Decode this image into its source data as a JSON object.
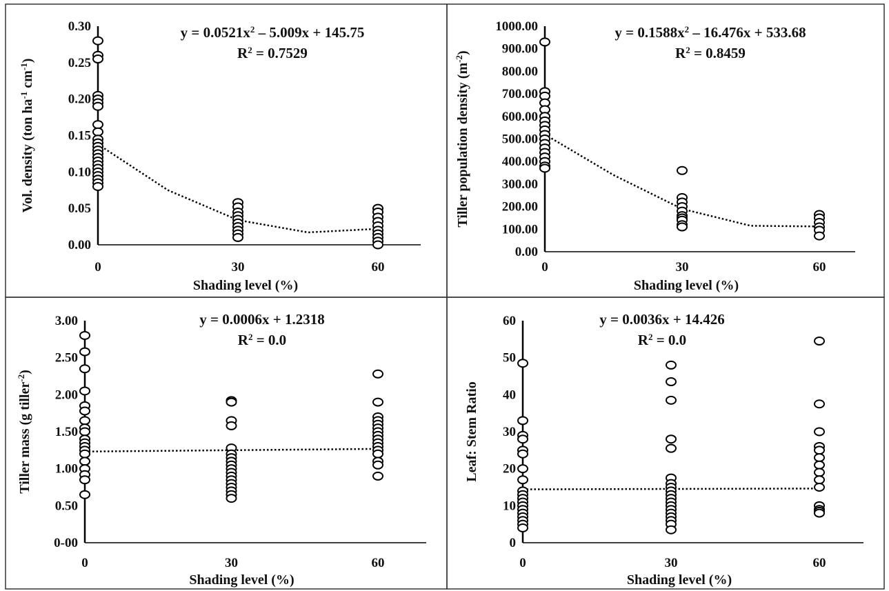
{
  "chart_data": [
    {
      "type": "scatter",
      "xlabel": "Shading level (%)",
      "ylabel": "Vol. density (ton ha-1 cm-1)",
      "ylabel_parts": [
        {
          "t": "Vol. density (ton ha"
        },
        {
          "t": "-1",
          "sup": true
        },
        {
          "t": " cm"
        },
        {
          "t": "-1",
          "sup": true
        },
        {
          "t": ")"
        }
      ],
      "x_ticks": [
        "0",
        "30",
        "60"
      ],
      "x_tick_values": [
        0,
        30,
        60
      ],
      "y_ticks": [
        "0.00",
        "0.05",
        "0.10",
        "0.15",
        "0.20",
        "0.25",
        "0.30"
      ],
      "ylim": [
        0,
        0.3
      ],
      "equation_parts": [
        {
          "t": "y = 0.0521x"
        },
        {
          "t": "2",
          "sup": true
        },
        {
          "t": " – 5.009x + 145.75"
        }
      ],
      "r2_parts": [
        {
          "t": "R"
        },
        {
          "t": "2",
          "sup": true
        },
        {
          "t": " = 0.7529"
        }
      ],
      "trendline": {
        "kind": "poly2",
        "points": [
          [
            0,
            0.138
          ],
          [
            15,
            0.075
          ],
          [
            30,
            0.034
          ],
          [
            45,
            0.017
          ],
          [
            60,
            0.022
          ]
        ]
      },
      "series": [
        {
          "x": 0,
          "values": [
            0.28,
            0.26,
            0.255,
            0.205,
            0.2,
            0.195,
            0.19,
            0.165,
            0.155,
            0.145,
            0.14,
            0.135,
            0.13,
            0.125,
            0.12,
            0.115,
            0.11,
            0.105,
            0.1,
            0.095,
            0.09,
            0.085,
            0.08
          ]
        },
        {
          "x": 30,
          "values": [
            0.058,
            0.052,
            0.045,
            0.04,
            0.035,
            0.03,
            0.025,
            0.02,
            0.015,
            0.01
          ]
        },
        {
          "x": 60,
          "values": [
            0.05,
            0.045,
            0.038,
            0.032,
            0.026,
            0.02,
            0.015,
            0.01,
            0.005,
            0.0
          ]
        }
      ]
    },
    {
      "type": "scatter",
      "xlabel": "Shading level (%)",
      "ylabel": "Tiller population density (m-2)",
      "ylabel_parts": [
        {
          "t": "Tiller population density (m"
        },
        {
          "t": "-2",
          "sup": true
        },
        {
          "t": ")"
        }
      ],
      "x_ticks": [
        "0",
        "30",
        "60"
      ],
      "x_tick_values": [
        0,
        30,
        60
      ],
      "y_ticks": [
        "0.00",
        "100.00",
        "200.00",
        "300.00",
        "400.00",
        "500.00",
        "600.00",
        "700.00",
        "800.00",
        "900.00",
        "1000.00"
      ],
      "ylim": [
        0,
        1000
      ],
      "equation_parts": [
        {
          "t": "y = 0.1588x"
        },
        {
          "t": "2",
          "sup": true
        },
        {
          "t": " – 16.476x + 533.68"
        }
      ],
      "r2_parts": [
        {
          "t": "R"
        },
        {
          "t": "2",
          "sup": true
        },
        {
          "t": " = 0.8459"
        }
      ],
      "trendline": {
        "kind": "poly2",
        "points": [
          [
            0,
            520
          ],
          [
            15,
            340
          ],
          [
            30,
            190
          ],
          [
            45,
            115
          ],
          [
            60,
            112
          ]
        ]
      },
      "series": [
        {
          "x": 0,
          "values": [
            930,
            710,
            690,
            660,
            630,
            600,
            580,
            560,
            540,
            520,
            500,
            480,
            460,
            440,
            420,
            400,
            380,
            370
          ]
        },
        {
          "x": 30,
          "values": [
            360,
            240,
            220,
            200,
            180,
            160,
            150,
            140,
            120,
            110
          ]
        },
        {
          "x": 60,
          "values": [
            165,
            150,
            130,
            110,
            95,
            70
          ]
        }
      ]
    },
    {
      "type": "scatter",
      "xlabel": "Shading level (%)",
      "ylabel": "Tiller mass (g tiller-2)",
      "ylabel_parts": [
        {
          "t": "Tiller mass (g tiller"
        },
        {
          "t": "-2",
          "sup": true
        },
        {
          "t": ")"
        }
      ],
      "x_ticks": [
        "0",
        "30",
        "60"
      ],
      "x_tick_values": [
        0,
        30,
        60
      ],
      "y_ticks": [
        "0-00",
        "0.50",
        "1.00",
        "1.50",
        "2.00",
        "2.50",
        "3.00"
      ],
      "ylim": [
        0,
        3
      ],
      "equation_parts": [
        {
          "t": "y = 0.0006x + 1.2318"
        }
      ],
      "r2_parts": [
        {
          "t": "R"
        },
        {
          "t": "2",
          "sup": true
        },
        {
          "t": " = 0.0"
        }
      ],
      "trendline": {
        "kind": "linear",
        "points": [
          [
            0,
            1.232
          ],
          [
            60,
            1.268
          ]
        ]
      },
      "series": [
        {
          "x": 0,
          "values": [
            2.8,
            2.58,
            2.35,
            2.05,
            1.85,
            1.78,
            1.65,
            1.55,
            1.5,
            1.4,
            1.35,
            1.3,
            1.25,
            1.2,
            1.1,
            1.0,
            0.92,
            0.85,
            0.65
          ]
        },
        {
          "x": 30,
          "values": [
            1.92,
            1.9,
            1.65,
            1.58,
            1.28,
            1.2,
            1.15,
            1.1,
            1.05,
            1.0,
            0.95,
            0.9,
            0.85,
            0.8,
            0.75,
            0.7,
            0.65,
            0.6
          ]
        },
        {
          "x": 60,
          "values": [
            2.28,
            1.9,
            1.7,
            1.65,
            1.6,
            1.55,
            1.5,
            1.45,
            1.4,
            1.35,
            1.3,
            1.25,
            1.2,
            1.1,
            1.05,
            0.9
          ]
        }
      ]
    },
    {
      "type": "scatter",
      "xlabel": "Shading level (%)",
      "ylabel": "Leaf: Stem Ratio",
      "ylabel_parts": [
        {
          "t": "Leaf: Stem Ratio"
        }
      ],
      "x_ticks": [
        "0",
        "30",
        "60"
      ],
      "x_tick_values": [
        0,
        30,
        60
      ],
      "y_ticks": [
        "0",
        "10",
        "20",
        "30",
        "40",
        "50",
        "60"
      ],
      "ylim": [
        0,
        60
      ],
      "equation_parts": [
        {
          "t": "y = 0.0036x + 14.426"
        }
      ],
      "r2_parts": [
        {
          "t": "R"
        },
        {
          "t": "2",
          "sup": true
        },
        {
          "t": " = 0.0"
        }
      ],
      "trendline": {
        "kind": "linear",
        "points": [
          [
            0,
            14.43
          ],
          [
            60,
            14.64
          ]
        ]
      },
      "series": [
        {
          "x": 0,
          "values": [
            48.5,
            33,
            29,
            28,
            25,
            24,
            20,
            17,
            14,
            13,
            12,
            11,
            10,
            9,
            8,
            7,
            6,
            5,
            4
          ]
        },
        {
          "x": 30,
          "values": [
            48,
            43.5,
            38.5,
            28,
            25.5,
            17.5,
            16,
            15,
            14,
            13,
            12,
            11,
            10,
            9,
            8,
            7,
            6,
            5,
            3.5
          ]
        },
        {
          "x": 60,
          "values": [
            54.5,
            37.5,
            30,
            26,
            25,
            23,
            21,
            19,
            17,
            15,
            10,
            9,
            8.5,
            8
          ]
        }
      ]
    }
  ]
}
